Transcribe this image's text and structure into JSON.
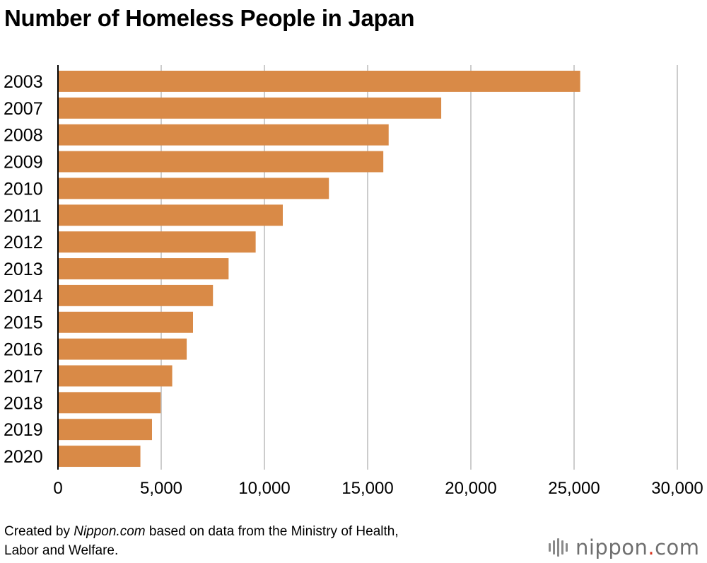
{
  "title": "Number of Homeless People in Japan",
  "source": {
    "prefix": "Created by ",
    "site": "Nippon.com",
    "suffix": " based on data from the Ministry of Health, Labor and Welfare."
  },
  "logo": {
    "word": "nippon",
    "dot": ".",
    "tld": "com"
  },
  "colors": {
    "bar": "#d98a47",
    "grid": "#cccccc",
    "axis": "#000000"
  },
  "chart_data": {
    "type": "bar",
    "orientation": "horizontal",
    "title": "Number of Homeless People in Japan",
    "categories": [
      "2003",
      "2007",
      "2008",
      "2009",
      "2010",
      "2011",
      "2012",
      "2013",
      "2014",
      "2015",
      "2016",
      "2017",
      "2018",
      "2019",
      "2020"
    ],
    "values": [
      25296,
      18564,
      16018,
      15759,
      13124,
      10890,
      9576,
      8265,
      7508,
      6541,
      6235,
      5534,
      4977,
      4555,
      3992
    ],
    "xlim": [
      0,
      30000
    ],
    "xticks": [
      "0",
      "5,000",
      "10,000",
      "15,000",
      "20,000",
      "25,000",
      "30,000"
    ],
    "grid": true,
    "xlabel": "",
    "ylabel": ""
  }
}
